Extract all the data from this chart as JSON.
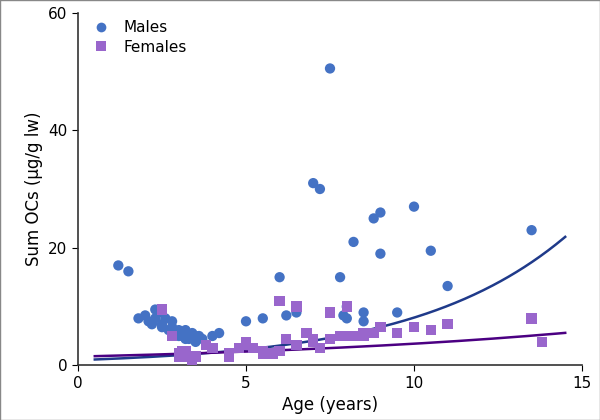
{
  "title": "",
  "xlabel": "Age (years)",
  "ylabel": "Sum OCs (μg/g lw)",
  "xlim": [
    0,
    15
  ],
  "ylim": [
    0,
    60
  ],
  "xticks": [
    0,
    5,
    10,
    15
  ],
  "yticks": [
    0,
    20,
    40,
    60
  ],
  "male_color": "#4472C4",
  "female_color": "#9966CC",
  "male_line_color": "#1F3A8A",
  "female_line_color": "#4B0082",
  "background_color": "#ffffff",
  "border_color": "#888888",
  "males_x": [
    1.2,
    1.5,
    1.8,
    2.0,
    2.1,
    2.2,
    2.3,
    2.3,
    2.4,
    2.5,
    2.5,
    2.6,
    2.7,
    2.8,
    2.8,
    2.9,
    3.0,
    3.0,
    3.1,
    3.1,
    3.2,
    3.2,
    3.3,
    3.3,
    3.4,
    3.5,
    3.5,
    3.6,
    3.7,
    4.0,
    4.2,
    5.0,
    5.5,
    6.0,
    6.2,
    6.5,
    7.0,
    7.2,
    7.5,
    7.8,
    7.9,
    8.0,
    8.0,
    8.2,
    8.5,
    8.5,
    8.8,
    9.0,
    9.0,
    9.5,
    10.0,
    10.5,
    11.0,
    13.5
  ],
  "males_y": [
    17.0,
    16.0,
    8.0,
    8.5,
    7.5,
    7.0,
    9.5,
    8.0,
    9.0,
    6.5,
    7.0,
    8.0,
    6.0,
    7.5,
    6.5,
    5.5,
    6.0,
    5.0,
    5.0,
    5.5,
    4.5,
    6.0,
    5.0,
    4.5,
    5.5,
    5.0,
    4.0,
    5.0,
    4.5,
    5.0,
    5.5,
    7.5,
    8.0,
    15.0,
    8.5,
    9.0,
    31.0,
    30.0,
    50.5,
    15.0,
    8.5,
    10.0,
    8.0,
    21.0,
    9.0,
    7.5,
    25.0,
    26.0,
    19.0,
    9.0,
    27.0,
    19.5,
    13.5,
    23.0
  ],
  "females_x": [
    2.5,
    2.8,
    3.0,
    3.0,
    3.1,
    3.2,
    3.3,
    3.4,
    3.5,
    3.8,
    4.0,
    4.5,
    4.5,
    4.8,
    5.0,
    5.0,
    5.2,
    5.5,
    5.5,
    5.8,
    6.0,
    6.0,
    6.2,
    6.5,
    6.5,
    6.8,
    7.0,
    7.0,
    7.2,
    7.5,
    7.5,
    7.8,
    8.0,
    8.0,
    8.2,
    8.5,
    8.5,
    8.8,
    9.0,
    9.5,
    10.0,
    10.5,
    11.0,
    13.5,
    13.8
  ],
  "females_y": [
    9.5,
    5.0,
    2.0,
    1.5,
    2.5,
    2.5,
    1.5,
    1.0,
    1.5,
    3.5,
    3.0,
    1.5,
    2.0,
    3.0,
    3.5,
    4.0,
    3.0,
    2.5,
    2.0,
    2.0,
    2.5,
    11.0,
    4.5,
    3.5,
    10.0,
    5.5,
    4.0,
    4.5,
    3.0,
    9.0,
    4.5,
    5.0,
    10.0,
    5.0,
    5.0,
    5.5,
    5.0,
    5.5,
    6.5,
    5.5,
    6.5,
    6.0,
    7.0,
    8.0,
    4.0
  ],
  "legend_labels": [
    "Males",
    "Females"
  ],
  "fontsize_labels": 12,
  "fontsize_ticks": 11,
  "fontsize_legend": 11,
  "marker_size": 55,
  "line_width": 1.8,
  "male_curve": [
    0.9,
    0.22
  ],
  "female_curve": [
    1.5,
    0.09
  ]
}
